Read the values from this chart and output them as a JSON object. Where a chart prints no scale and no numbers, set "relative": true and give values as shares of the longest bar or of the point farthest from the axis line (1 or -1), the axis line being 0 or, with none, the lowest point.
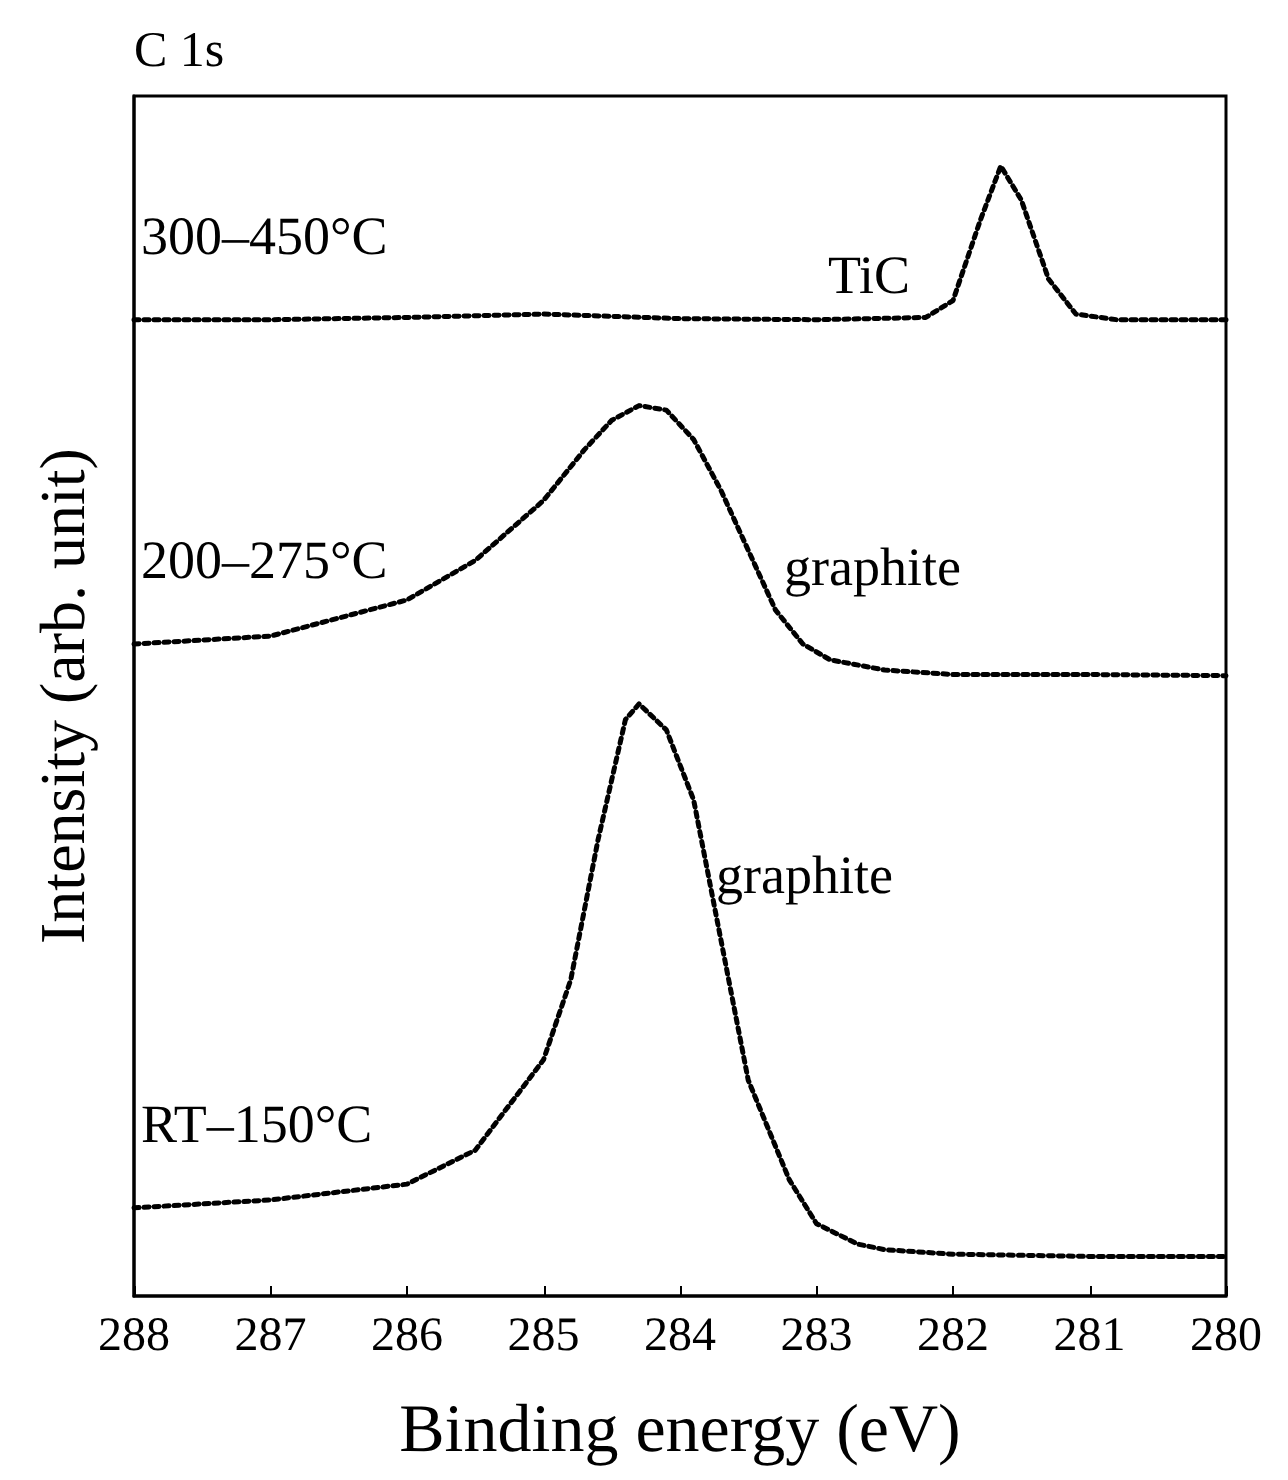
{
  "chart_data": {
    "type": "line",
    "title": "C 1s",
    "xlabel": "Binding energy (eV)",
    "ylabel": "Intensity (arb. unit)",
    "relative": true,
    "xlim": [
      288,
      280
    ],
    "xticks": [
      288,
      287,
      286,
      285,
      284,
      283,
      282,
      281,
      280
    ],
    "grid": false,
    "legend": false,
    "marker": "none",
    "line_style": "dotted",
    "series": [
      {
        "name": "RT–150°C",
        "color": "#000000",
        "x": [
          288,
          287,
          286,
          285.5,
          285,
          284.8,
          284.6,
          284.4,
          284.3,
          284.1,
          283.9,
          283.7,
          283.5,
          283.2,
          283,
          282.7,
          282.5,
          282,
          281,
          280
        ],
        "values": [
          0.078,
          0.085,
          0.099,
          0.129,
          0.209,
          0.28,
          0.404,
          0.51,
          0.524,
          0.501,
          0.439,
          0.315,
          0.191,
          0.103,
          0.064,
          0.046,
          0.041,
          0.037,
          0.035,
          0.035
        ]
      },
      {
        "name": "200–275°C",
        "color": "#000000",
        "x": [
          288,
          287,
          286,
          285.5,
          285,
          284.7,
          284.5,
          284.3,
          284.1,
          283.9,
          283.7,
          283.5,
          283.3,
          283.1,
          282.9,
          282.5,
          282,
          281,
          280
        ],
        "values": [
          0.577,
          0.584,
          0.616,
          0.651,
          0.704,
          0.749,
          0.775,
          0.788,
          0.784,
          0.758,
          0.713,
          0.66,
          0.607,
          0.577,
          0.563,
          0.554,
          0.55,
          0.55,
          0.549
        ]
      },
      {
        "name": "300–450°C",
        "color": "#000000",
        "x": [
          288,
          287,
          286,
          285,
          284,
          283,
          282.2,
          282,
          281.8,
          281.65,
          281.5,
          281.3,
          281.1,
          280.8,
          280
        ],
        "values": [
          0.864,
          0.864,
          0.866,
          0.869,
          0.865,
          0.864,
          0.866,
          0.881,
          0.952,
          1.0,
          0.97,
          0.9,
          0.869,
          0.864,
          0.864
        ]
      }
    ],
    "annotations": [
      "TiC",
      "graphite",
      "graphite"
    ]
  }
}
